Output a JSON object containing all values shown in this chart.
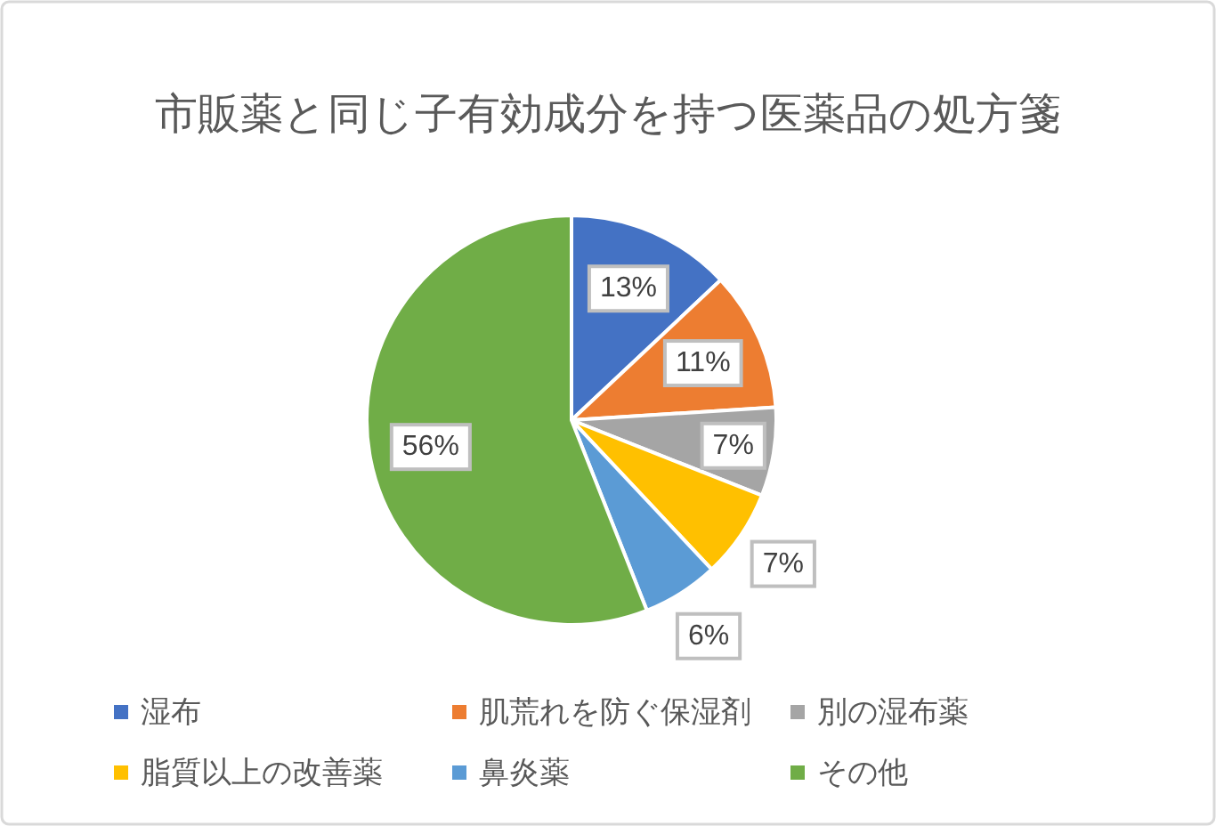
{
  "chart_data": {
    "type": "pie",
    "title": "市販薬と同じ子有効成分を持つ医薬品の処方箋",
    "categories": [
      "湿布",
      "肌荒れを防ぐ保湿剤",
      "別の湿布薬",
      "脂質以上の改善薬",
      "鼻炎薬",
      "その他"
    ],
    "values": [
      13,
      11,
      7,
      7,
      6,
      56
    ],
    "colors": [
      "#4472c4",
      "#ed7d31",
      "#a5a5a5",
      "#ffc000",
      "#5b9bd5",
      "#70ad47"
    ],
    "value_labels": [
      "13%",
      "11%",
      "7%",
      "7%",
      "6%",
      "56%"
    ],
    "legend": "bottom"
  }
}
